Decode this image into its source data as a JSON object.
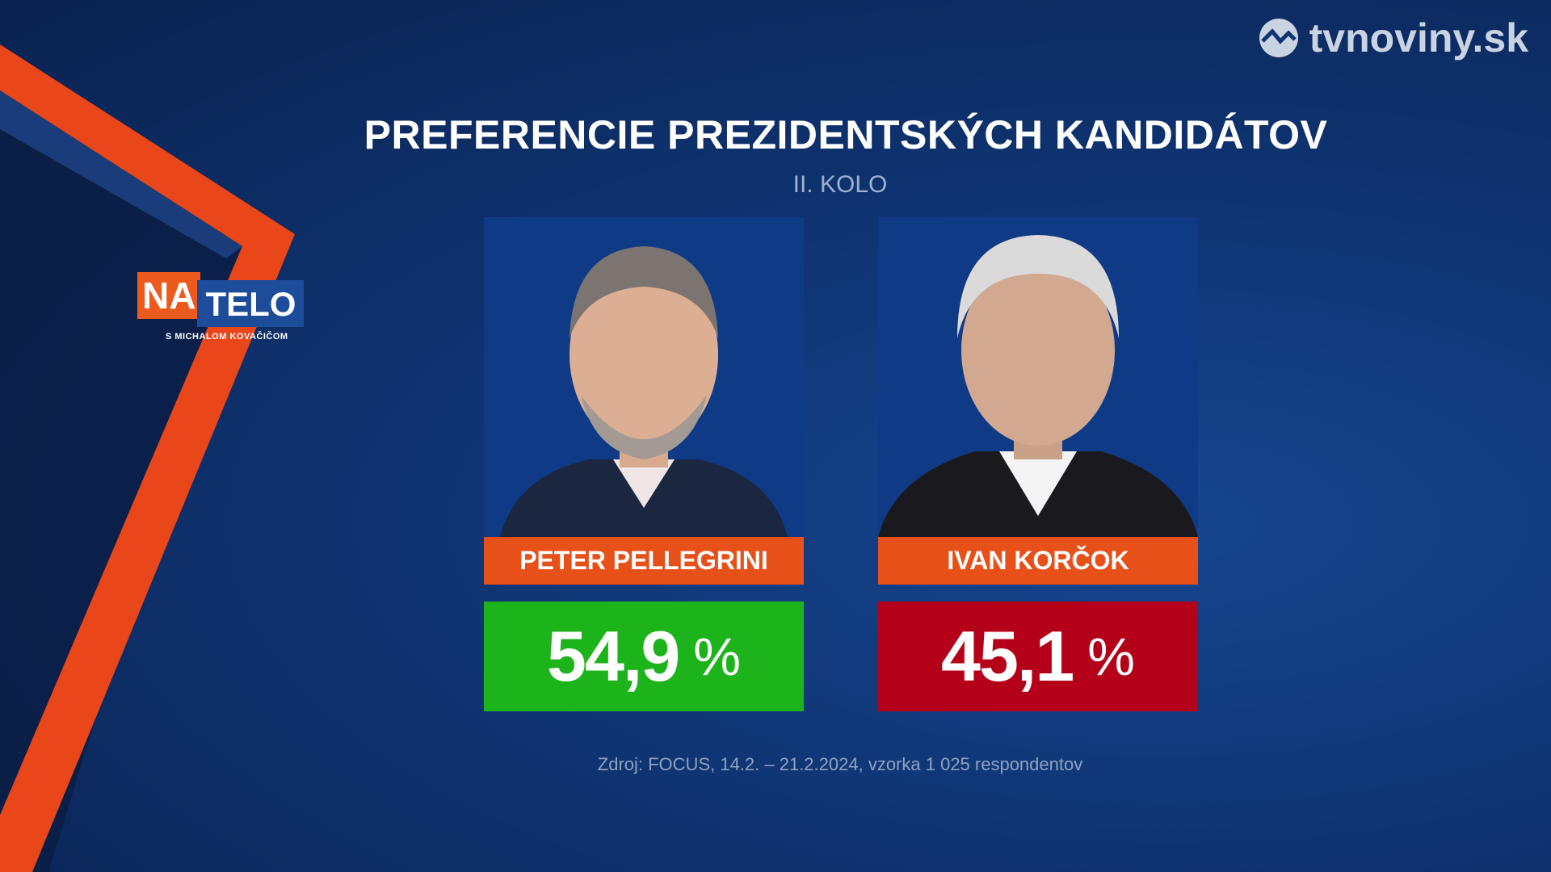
{
  "brand": "tvnoviny.sk",
  "show": {
    "logo_left": "NA",
    "logo_right": "TELO",
    "host": "S MICHALOM KOVAČIČOM"
  },
  "title": "PREFERENCIE PREZIDENTSKÝCH KANDIDÁTOV",
  "subtitle": "II. KOLO",
  "candidates": [
    {
      "name": "PETER PELLEGRINI",
      "value": "54,9",
      "unit": "%"
    },
    {
      "name": "IVAN KORČOK",
      "value": "45,1",
      "unit": "%"
    }
  ],
  "source": "Zdroj: FOCUS, 14.2. – 21.2.2024, vzorka 1 025 respondentov"
}
